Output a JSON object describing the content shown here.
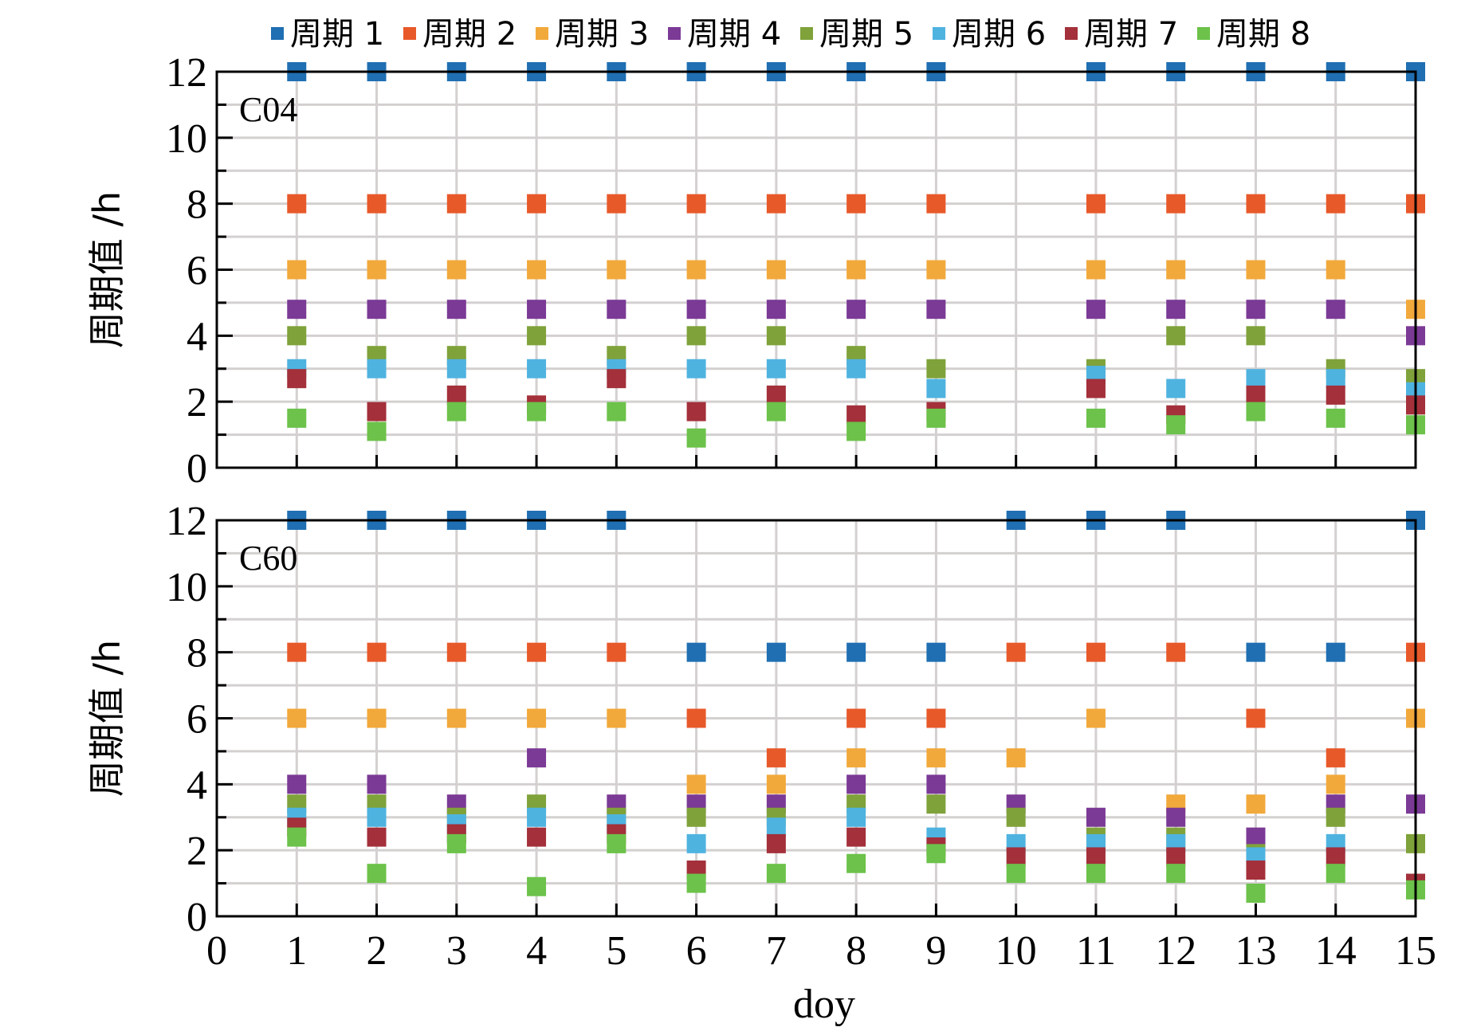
{
  "chart_data": {
    "type": "scatter",
    "xlabel": "doy",
    "ylabel": "周期值 /h",
    "xlim": [
      0,
      15
    ],
    "ylim": [
      0,
      12
    ],
    "x_ticks": [
      0,
      1,
      2,
      3,
      4,
      5,
      6,
      7,
      8,
      9,
      10,
      11,
      12,
      13,
      14,
      15
    ],
    "y_ticks": [
      0,
      2,
      4,
      6,
      8,
      10,
      12
    ],
    "grid": true,
    "legend_position": "top",
    "series_names": [
      "周期 1",
      "周期 2",
      "周期 3",
      "周期 4",
      "周期 5",
      "周期 6",
      "周期 7",
      "周期 8"
    ],
    "series_colors": [
      "#1f6fb2",
      "#e8592a",
      "#f2a93b",
      "#7b3a96",
      "#7fa23a",
      "#4fb3e0",
      "#a3303a",
      "#6cc24a"
    ],
    "panels": [
      {
        "label": "C04",
        "series": [
          {
            "name": "周期 1",
            "points": [
              [
                1,
                12
              ],
              [
                2,
                12
              ],
              [
                3,
                12
              ],
              [
                4,
                12
              ],
              [
                5,
                12
              ],
              [
                6,
                12
              ],
              [
                7,
                12
              ],
              [
                8,
                12
              ],
              [
                9,
                12
              ],
              [
                11,
                12
              ],
              [
                12,
                12
              ],
              [
                13,
                12
              ],
              [
                14,
                12
              ],
              [
                15,
                12
              ]
            ]
          },
          {
            "name": "周期 2",
            "points": [
              [
                1,
                8
              ],
              [
                2,
                8
              ],
              [
                3,
                8
              ],
              [
                4,
                8
              ],
              [
                5,
                8
              ],
              [
                6,
                8
              ],
              [
                7,
                8
              ],
              [
                8,
                8
              ],
              [
                9,
                8
              ],
              [
                11,
                8
              ],
              [
                12,
                8
              ],
              [
                13,
                8
              ],
              [
                14,
                8
              ],
              [
                15,
                8
              ]
            ]
          },
          {
            "name": "周期 3",
            "points": [
              [
                1,
                6
              ],
              [
                2,
                6
              ],
              [
                3,
                6
              ],
              [
                4,
                6
              ],
              [
                5,
                6
              ],
              [
                6,
                6
              ],
              [
                7,
                6
              ],
              [
                8,
                6
              ],
              [
                9,
                6
              ],
              [
                11,
                6
              ],
              [
                12,
                6
              ],
              [
                13,
                6
              ],
              [
                14,
                6
              ],
              [
                15,
                4.8
              ]
            ]
          },
          {
            "name": "周期 4",
            "points": [
              [
                1,
                4.8
              ],
              [
                2,
                4.8
              ],
              [
                3,
                4.8
              ],
              [
                4,
                4.8
              ],
              [
                5,
                4.8
              ],
              [
                6,
                4.8
              ],
              [
                7,
                4.8
              ],
              [
                8,
                4.8
              ],
              [
                9,
                4.8
              ],
              [
                11,
                4.8
              ],
              [
                12,
                4.8
              ],
              [
                13,
                4.8
              ],
              [
                14,
                4.8
              ],
              [
                15,
                4
              ]
            ]
          },
          {
            "name": "周期 5",
            "points": [
              [
                1,
                4
              ],
              [
                2,
                3.4
              ],
              [
                3,
                3.4
              ],
              [
                4,
                4
              ],
              [
                5,
                3.4
              ],
              [
                6,
                4
              ],
              [
                7,
                4
              ],
              [
                8,
                3.4
              ],
              [
                9,
                3
              ],
              [
                11,
                3
              ],
              [
                12,
                4
              ],
              [
                13,
                4
              ],
              [
                14,
                3
              ],
              [
                15,
                2.7
              ]
            ]
          },
          {
            "name": "周期 6",
            "points": [
              [
                1,
                3
              ],
              [
                2,
                3
              ],
              [
                3,
                3
              ],
              [
                4,
                3
              ],
              [
                5,
                3
              ],
              [
                6,
                3
              ],
              [
                7,
                3
              ],
              [
                8,
                3
              ],
              [
                9,
                2.4
              ],
              [
                11,
                2.8
              ],
              [
                12,
                2.4
              ],
              [
                13,
                2.7
              ],
              [
                14,
                2.7
              ],
              [
                15,
                2.3
              ]
            ]
          },
          {
            "name": "周期 7",
            "points": [
              [
                1,
                2.7
              ],
              [
                2,
                1.7
              ],
              [
                3,
                2.2
              ],
              [
                4,
                1.9
              ],
              [
                5,
                2.7
              ],
              [
                6,
                1.7
              ],
              [
                7,
                2.2
              ],
              [
                8,
                1.6
              ],
              [
                9,
                1.7
              ],
              [
                11,
                2.4
              ],
              [
                12,
                1.6
              ],
              [
                13,
                2.2
              ],
              [
                14,
                2.2
              ],
              [
                15,
                1.9
              ]
            ]
          },
          {
            "name": "周期 8",
            "points": [
              [
                1,
                1.5
              ],
              [
                2,
                1.1
              ],
              [
                3,
                1.7
              ],
              [
                4,
                1.7
              ],
              [
                5,
                1.7
              ],
              [
                6,
                0.9
              ],
              [
                7,
                1.7
              ],
              [
                8,
                1.1
              ],
              [
                9,
                1.5
              ],
              [
                11,
                1.5
              ],
              [
                12,
                1.3
              ],
              [
                13,
                1.7
              ],
              [
                14,
                1.5
              ],
              [
                15,
                1.3
              ]
            ]
          }
        ]
      },
      {
        "label": "C60",
        "series": [
          {
            "name": "周期 1",
            "points": [
              [
                1,
                12
              ],
              [
                2,
                12
              ],
              [
                3,
                12
              ],
              [
                4,
                12
              ],
              [
                5,
                12
              ],
              [
                6,
                8
              ],
              [
                7,
                8
              ],
              [
                8,
                8
              ],
              [
                9,
                8
              ],
              [
                10,
                12
              ],
              [
                11,
                12
              ],
              [
                12,
                12
              ],
              [
                13,
                8
              ],
              [
                14,
                8
              ],
              [
                15,
                12
              ]
            ]
          },
          {
            "name": "周期 2",
            "points": [
              [
                1,
                8
              ],
              [
                2,
                8
              ],
              [
                3,
                8
              ],
              [
                4,
                8
              ],
              [
                5,
                8
              ],
              [
                6,
                6
              ],
              [
                7,
                4.8
              ],
              [
                8,
                6
              ],
              [
                9,
                6
              ],
              [
                10,
                8
              ],
              [
                11,
                8
              ],
              [
                12,
                8
              ],
              [
                13,
                6
              ],
              [
                14,
                4.8
              ],
              [
                15,
                8
              ]
            ]
          },
          {
            "name": "周期 3",
            "points": [
              [
                1,
                6
              ],
              [
                2,
                6
              ],
              [
                3,
                6
              ],
              [
                4,
                6
              ],
              [
                5,
                6
              ],
              [
                6,
                4
              ],
              [
                7,
                4
              ],
              [
                8,
                4.8
              ],
              [
                9,
                4.8
              ],
              [
                10,
                4.8
              ],
              [
                11,
                6
              ],
              [
                12,
                3.4
              ],
              [
                13,
                3.4
              ],
              [
                14,
                4
              ],
              [
                15,
                6
              ]
            ]
          },
          {
            "name": "周期 4",
            "points": [
              [
                1,
                4
              ],
              [
                2,
                4
              ],
              [
                3,
                3.4
              ],
              [
                4,
                4.8
              ],
              [
                5,
                3.4
              ],
              [
                6,
                3.4
              ],
              [
                7,
                3.4
              ],
              [
                8,
                4
              ],
              [
                9,
                4
              ],
              [
                10,
                3.4
              ],
              [
                11,
                3
              ],
              [
                12,
                3
              ],
              [
                13,
                2.4
              ],
              [
                14,
                3.4
              ],
              [
                15,
                3.4
              ]
            ]
          },
          {
            "name": "周期 5",
            "points": [
              [
                1,
                3.4
              ],
              [
                2,
                3.4
              ],
              [
                3,
                3
              ],
              [
                4,
                3.4
              ],
              [
                5,
                3
              ],
              [
                6,
                3
              ],
              [
                7,
                3
              ],
              [
                8,
                3.4
              ],
              [
                9,
                3.4
              ],
              [
                10,
                3
              ],
              [
                11,
                2.4
              ],
              [
                12,
                2.4
              ],
              [
                13,
                1.9
              ],
              [
                14,
                3
              ],
              [
                15,
                2.2
              ]
            ]
          },
          {
            "name": "周期 6",
            "points": [
              [
                1,
                3
              ],
              [
                2,
                3
              ],
              [
                3,
                2.8
              ],
              [
                4,
                3
              ],
              [
                5,
                2.8
              ],
              [
                6,
                2.2
              ],
              [
                7,
                2.7
              ],
              [
                8,
                3
              ],
              [
                9,
                2.4
              ],
              [
                10,
                2.2
              ],
              [
                11,
                2.2
              ],
              [
                12,
                2.2
              ],
              [
                13,
                1.8
              ],
              [
                14,
                2.2
              ],
              [
                15,
                1
              ]
            ]
          },
          {
            "name": "周期 7",
            "points": [
              [
                1,
                2.7
              ],
              [
                2,
                2.4
              ],
              [
                3,
                2.5
              ],
              [
                4,
                2.4
              ],
              [
                5,
                2.5
              ],
              [
                6,
                1.4
              ],
              [
                7,
                2.2
              ],
              [
                8,
                2.4
              ],
              [
                9,
                2.1
              ],
              [
                10,
                1.8
              ],
              [
                11,
                1.8
              ],
              [
                12,
                1.8
              ],
              [
                13,
                1.4
              ],
              [
                14,
                1.8
              ],
              [
                15,
                1
              ]
            ]
          },
          {
            "name": "周期 8",
            "points": [
              [
                1,
                2.4
              ],
              [
                2,
                1.3
              ],
              [
                3,
                2.2
              ],
              [
                4,
                0.9
              ],
              [
                5,
                2.2
              ],
              [
                6,
                1
              ],
              [
                7,
                1.3
              ],
              [
                8,
                1.6
              ],
              [
                9,
                1.9
              ],
              [
                10,
                1.3
              ],
              [
                11,
                1.3
              ],
              [
                12,
                1.3
              ],
              [
                13,
                0.7
              ],
              [
                14,
                1.3
              ],
              [
                15,
                0.8
              ]
            ]
          }
        ]
      }
    ]
  }
}
